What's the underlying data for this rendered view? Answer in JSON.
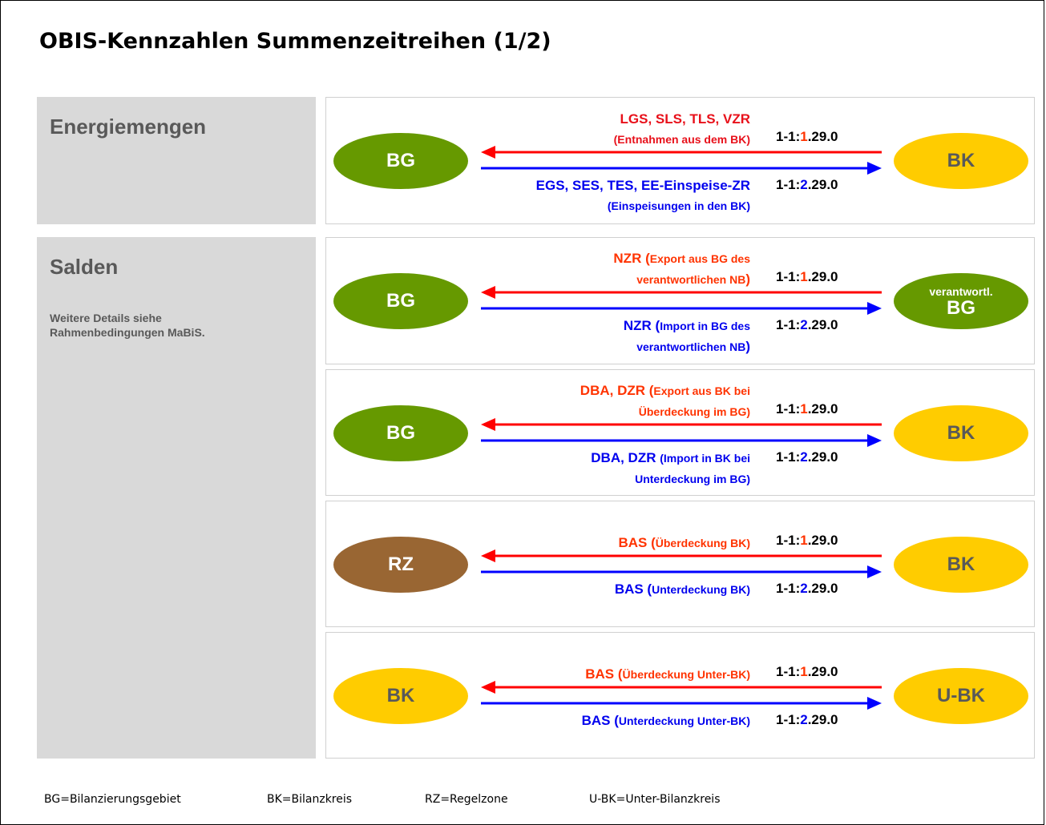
{
  "title": "OBIS-Kennzahlen Summenzeitreihen (1/2)",
  "sections": [
    {
      "heading": "Energiemengen"
    },
    {
      "heading": "Salden",
      "note": "Weitere Details siehe Rahmenbedingungen MaBiS."
    }
  ],
  "rows": [
    {
      "left": {
        "label": "BG",
        "color": "#669900",
        "text_color": "#ffffff"
      },
      "right": {
        "label": "BK",
        "color": "#ffcc00",
        "text_color": "#595959"
      },
      "red": [
        [
          "LGS, SLS, TLS, VZR"
        ],
        [
          {
            "small": "(Entnahmen aus dem BK)"
          }
        ]
      ],
      "blue": [
        [
          "EGS, SES, TES, EE-Einspeise-ZR"
        ],
        [
          {
            "small": "(Einspeisungen in den BK)"
          }
        ]
      ],
      "red_code": {
        "prefix": "1-1:",
        "channel": "1",
        "suffix": ".29.0"
      },
      "blue_code": {
        "prefix": "1-1:",
        "channel": "2",
        "suffix": ".29.0"
      }
    },
    {
      "left": {
        "label": "BG",
        "color": "#669900",
        "text_color": "#ffffff"
      },
      "right": {
        "label": "BG",
        "caption": "verantwortl.",
        "color": "#669900",
        "text_color": "#ffffff"
      },
      "red": [
        [
          "NZR (",
          {
            "small": "Export aus BG des"
          }
        ],
        [
          {
            "small": "verantwortlichen NB"
          },
          ")"
        ]
      ],
      "blue": [
        [
          "NZR (",
          {
            "small": "Import in BG des"
          }
        ],
        [
          {
            "small": "verantwortlichen NB"
          },
          ")"
        ]
      ],
      "red_code": {
        "prefix": "1-1:",
        "channel": "1",
        "suffix": ".29.0"
      },
      "blue_code": {
        "prefix": "1-1:",
        "channel": "2",
        "suffix": ".29.0"
      }
    },
    {
      "left": {
        "label": "BG",
        "color": "#669900",
        "text_color": "#ffffff"
      },
      "right": {
        "label": "BK",
        "color": "#ffcc00",
        "text_color": "#595959"
      },
      "red": [
        [
          "DBA, DZR (",
          {
            "small": "Export aus BK bei"
          }
        ],
        [
          {
            "small": "Überdeckung im BG)"
          }
        ]
      ],
      "blue": [
        [
          "DBA, DZR ",
          {
            "small": "(Import in BK bei"
          }
        ],
        [
          {
            "small": "Unterdeckung im BG)"
          }
        ]
      ],
      "red_code": {
        "prefix": "1-1:",
        "channel": "1",
        "suffix": ".29.0"
      },
      "blue_code": {
        "prefix": "1-1:",
        "channel": "2",
        "suffix": ".29.0"
      }
    },
    {
      "left": {
        "label": "RZ",
        "color": "#996633",
        "text_color": "#ffffff"
      },
      "right": {
        "label": "BK",
        "color": "#ffcc00",
        "text_color": "#595959"
      },
      "red": [
        [
          "BAS (",
          {
            "small": "Überdeckung BK)"
          }
        ]
      ],
      "blue": [
        [
          "BAS (",
          {
            "small": "Unterdeckung BK)"
          }
        ]
      ],
      "red_code": {
        "prefix": "1-1:",
        "channel": "1",
        "suffix": ".29.0"
      },
      "blue_code": {
        "prefix": "1-1:",
        "channel": "2",
        "suffix": ".29.0"
      }
    },
    {
      "left": {
        "label": "BK",
        "color": "#ffcc00",
        "text_color": "#595959"
      },
      "right": {
        "label": "U-BK",
        "color": "#ffcc00",
        "text_color": "#595959"
      },
      "red": [
        [
          "BAS (",
          {
            "small": "Überdeckung Unter-BK)"
          }
        ]
      ],
      "blue": [
        [
          "BAS (",
          {
            "small": "Unterdeckung Unter-BK)"
          }
        ]
      ],
      "red_code": {
        "prefix": "1-1:",
        "channel": "1",
        "suffix": ".29.0"
      },
      "blue_code": {
        "prefix": "1-1:",
        "channel": "2",
        "suffix": ".29.0"
      }
    }
  ],
  "legend": [
    "BG=Bilanzierungsgebiet",
    "BK=Bilanzkreis",
    "RZ=Regelzone",
    "U-BK=Unter-Bilanzkreis"
  ]
}
